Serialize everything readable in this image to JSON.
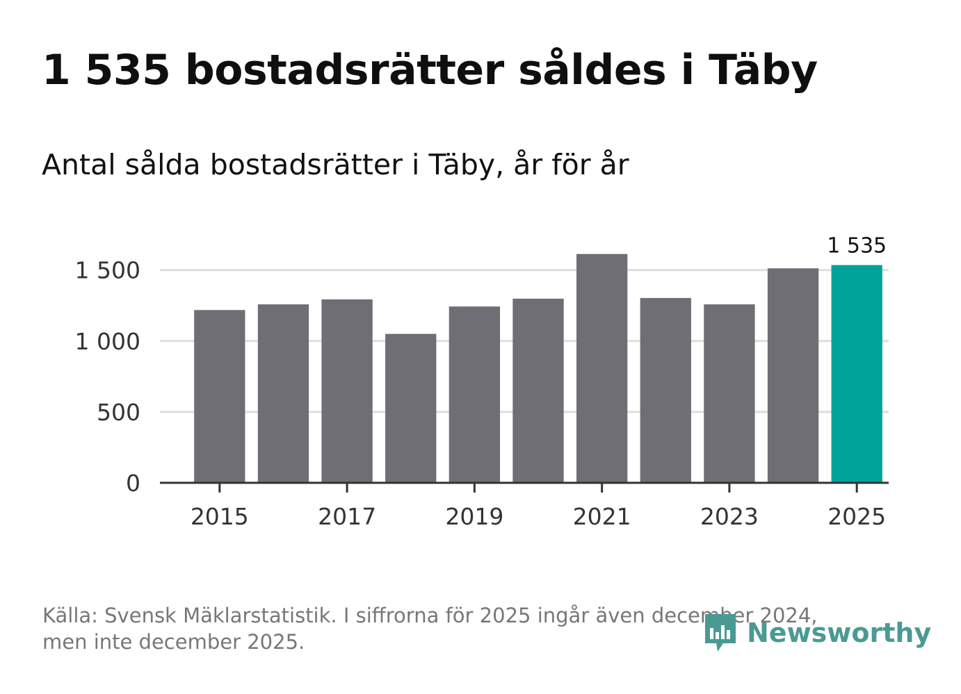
{
  "header": {
    "title": "1 535 bostadsrätter såldes i Täby",
    "subtitle": "Antal sålda bostadsrätter i Täby, år för år"
  },
  "footer": {
    "source_line1": "Källa: Svensk Mäklarstatistik. I siffrorna för 2025 ingår även december 2024,",
    "source_line2": "men inte december 2025.",
    "brand": "Newsworthy"
  },
  "colors": {
    "bar": "#6f6e74",
    "highlight": "#00a398",
    "grid": "#dddddd",
    "axis": "#333333",
    "brand": "#4a9a93"
  },
  "chart_data": {
    "type": "bar",
    "title": "Antal sålda bostadsrätter i Täby, år för år",
    "xlabel": "",
    "ylabel": "",
    "categories": [
      "2015",
      "2016",
      "2017",
      "2018",
      "2019",
      "2020",
      "2021",
      "2022",
      "2023",
      "2024",
      "2025"
    ],
    "values": [
      1218,
      1258,
      1293,
      1050,
      1243,
      1298,
      1613,
      1303,
      1258,
      1512,
      1535
    ],
    "highlight_index": 10,
    "ylim": [
      0,
      1700
    ],
    "yticks": [
      0,
      500,
      1000,
      1500
    ],
    "ytick_labels": [
      "0",
      "500",
      "1 000",
      "1 500"
    ],
    "xtick_labels": [
      "2015",
      "2017",
      "2019",
      "2021",
      "2023",
      "2025"
    ],
    "data_labels": [
      {
        "index": 10,
        "text": "1 535"
      }
    ],
    "grid": true
  }
}
